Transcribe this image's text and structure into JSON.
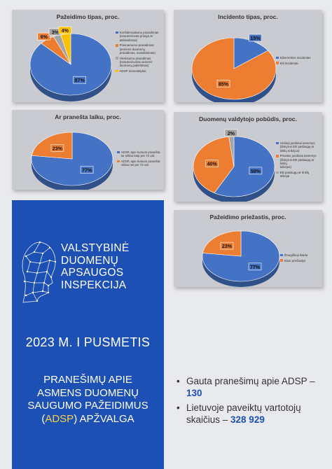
{
  "colors": {
    "blue": "#4472c4",
    "orange": "#ed7d31",
    "gray": "#a5a5a5",
    "yellow": "#ffc000",
    "panel": "#1d50b4"
  },
  "chart_data": [
    {
      "type": "pie",
      "title": "Pažeidimo tipas, proc.",
      "categories": [
        "Konfidencialumo praradimas\n(neautorizuota prieiga ar\natskleidimas)",
        "Prieinamumo praradimas\n(asmens duomenų\npraradimas, sunaikinimas)",
        "Vientisumo praradimas\n(neautorizuotas asmens\nduomenų pakeitimas)",
        "ADSP nenustatytas"
      ],
      "values": [
        87,
        6,
        3,
        4
      ],
      "labels": [
        "87%",
        "6%",
        "3%",
        "4%"
      ],
      "colors": [
        "#4472c4",
        "#ed7d31",
        "#a5a5a5",
        "#ffc000"
      ],
      "legend": "right"
    },
    {
      "type": "pie",
      "title": "Incidento tipas, proc.",
      "categories": [
        "Kibernetinis incidentas",
        "Kiti incidentai"
      ],
      "values": [
        15,
        85
      ],
      "labels": [
        "15%",
        "85%"
      ],
      "colors": [
        "#4472c4",
        "#ed7d31"
      ],
      "legend": "right"
    },
    {
      "type": "pie",
      "title": "Ar pranešta laiku, proc.",
      "categories": [
        "ADSP, apie kuriuos pranešta\nne vėliau kaip per 72 val.",
        "ADSP, apie kuriuos pranešta\nvėliau nei per 72 val."
      ],
      "values": [
        77,
        23
      ],
      "labels": [
        "77%",
        "23%"
      ],
      "colors": [
        "#4472c4",
        "#ed7d31"
      ],
      "legend": "right"
    },
    {
      "type": "pie",
      "title": "Duomenų valdytojo pobūdis, proc.",
      "categories": [
        "Viešieji juridiniai asmenys\n(išskyrus EŖ paslaugų ar\ntinklų teikėjus)",
        "Privatūs juridiniai asmenys\n(išskyrus EŖ paslaugų ar tinklų\nteikėjus)",
        "EŖ paslaugų ar tinklų\nteikėjai"
      ],
      "values": [
        58,
        40,
        2
      ],
      "labels": [
        "58%",
        "40%",
        "2%"
      ],
      "colors": [
        "#4472c4",
        "#ed7d31",
        "#a5a5a5"
      ],
      "legend": "right"
    },
    {
      "type": "pie",
      "title": "Pažeidimo priežastis, proc.",
      "categories": [
        "Žmogiškoji klaida",
        "Kitos priežastys"
      ],
      "values": [
        77,
        23
      ],
      "labels": [
        "77%",
        "23%"
      ],
      "colors": [
        "#4472c4",
        "#ed7d31"
      ],
      "legend": "right"
    }
  ],
  "agency": {
    "line1": "VALSTYBINĖ",
    "line2": "DUOMENŲ",
    "line3": "APSAUGOS",
    "line4": "INSPEKCIJA"
  },
  "period": "2023 M. I PUSMETIS",
  "heading": {
    "line1": "PRANEŠIMŲ APIE",
    "line2": "ASMENS DUOMENŲ",
    "line3": "SAUGUMO PAŽEIDIMUS",
    "open": "(",
    "acronym": "ADSP",
    "close": ")",
    "tail": " APŽVALGA"
  },
  "stats": {
    "bullet": "•",
    "item1_text": "Gauta pranešimų apie ADSP – ",
    "item1_value": "130",
    "item2_text": "Lietuvoje paveiktų vartotojų skaičius – ",
    "item2_value": "328 929"
  }
}
